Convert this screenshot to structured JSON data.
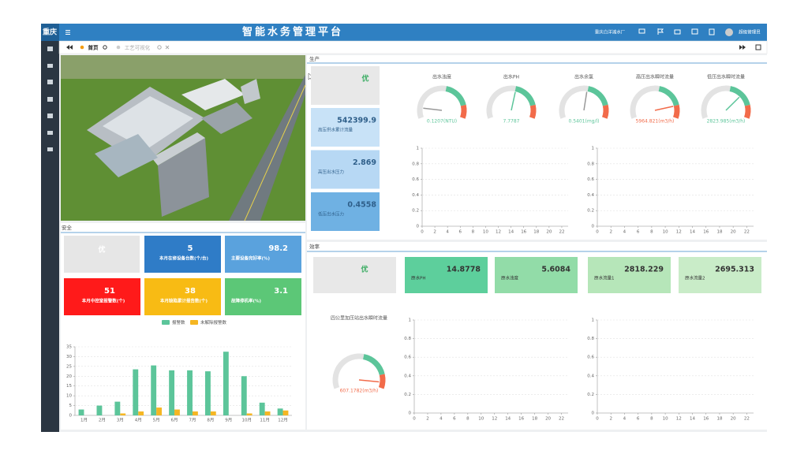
{
  "header": {
    "logo": "重庆",
    "title": "智能水务管理平台",
    "plant": "重庆白洋滩水厂",
    "user": "超级管理员"
  },
  "tabs": [
    "首页",
    "工艺可视化"
  ],
  "safety": {
    "title": "安全",
    "grade": "优",
    "cards": [
      {
        "value": 5,
        "label": "本月在修设备台数(个/台)"
      },
      {
        "value": 98.2,
        "label": "主要设备完好率(%)"
      },
      {
        "value": 51,
        "label": "本月中控室报警数(个)"
      },
      {
        "value": 38,
        "label": "本月缺陷累计报告数(个)"
      },
      {
        "value": 3.1,
        "label": "故障停机率(%)"
      }
    ]
  },
  "production": {
    "title": "生产",
    "grade": "优",
    "cards": [
      {
        "value": 542399.9,
        "label": "高压供水累计流量"
      },
      {
        "value": 2.869,
        "label": "高压出水压力"
      },
      {
        "value": 0.4558,
        "label": "低压出水压力"
      }
    ]
  },
  "efficiency": {
    "title": "效率",
    "grade": "优",
    "cards": [
      {
        "value": 14.8778,
        "label": "原水PH"
      },
      {
        "value": 5.6084,
        "label": "原水浊度"
      },
      {
        "value": 2818.229,
        "label": "原水流量1"
      },
      {
        "value": 2695.313,
        "label": "原水流量2"
      }
    ]
  },
  "chart_data": [
    {
      "type": "bar",
      "categories": [
        "1月",
        "2月",
        "3月",
        "4月",
        "5月",
        "6月",
        "7月",
        "8月",
        "9月",
        "10月",
        "11月",
        "12月"
      ],
      "series": [
        {
          "name": "报警数",
          "color": "#5cc59a",
          "values": [
            3,
            5,
            7,
            23.5,
            25.5,
            23,
            23,
            22.5,
            32.5,
            20,
            6.5,
            3.5
          ]
        },
        {
          "name": "未解除报警数",
          "color": "#f5b623",
          "values": [
            0,
            0,
            1,
            2,
            4,
            3,
            2,
            2,
            0,
            1,
            2,
            2.5
          ]
        }
      ],
      "ylim": [
        0,
        35
      ],
      "yticks": [
        0,
        5,
        10,
        15,
        20,
        25,
        30,
        35
      ],
      "grid": true
    },
    {
      "type": "gauge",
      "title": "出水浊度",
      "value": 0.1207,
      "value_label": "0.1207(NTU)",
      "range": [
        0,
        1
      ]
    },
    {
      "type": "gauge",
      "title": "出水PH",
      "value": 7.7787,
      "value_label": "7.7787",
      "range": [
        0,
        14
      ]
    },
    {
      "type": "gauge",
      "title": "出水余氯",
      "value": 0.5401,
      "value_label": "0.5401(mg/l)",
      "range": [
        0,
        1
      ]
    },
    {
      "type": "gauge",
      "title": "高压出水瞬时流量",
      "value": 5964.821,
      "value_label": "5964.821(m3/h)",
      "range": [
        0,
        7000
      ]
    },
    {
      "type": "gauge",
      "title": "低压出水瞬时流量",
      "value": 2823.985,
      "value_label": "2823.985(m3/h)",
      "range": [
        0,
        4000
      ]
    },
    {
      "type": "line",
      "xlim": [
        0,
        23
      ],
      "xticks": [
        0,
        2,
        4,
        6,
        8,
        10,
        12,
        14,
        16,
        18,
        20,
        22
      ],
      "ylim": [
        0,
        1
      ],
      "yticks": [
        0,
        0.2,
        0.4,
        0.6,
        0.8,
        1
      ],
      "grid": true,
      "series": []
    },
    {
      "type": "line",
      "xlim": [
        0,
        23
      ],
      "xticks": [
        0,
        2,
        4,
        6,
        8,
        10,
        12,
        14,
        16,
        18,
        20,
        22
      ],
      "ylim": [
        0,
        1
      ],
      "yticks": [
        0,
        0.2,
        0.4,
        0.6,
        0.8,
        1
      ],
      "grid": true,
      "series": []
    },
    {
      "type": "gauge",
      "title": "四公里加压站出水瞬时流量",
      "value": 607.1782,
      "value_label": "607.1782(m3/h)",
      "range": [
        0,
        650
      ]
    },
    {
      "type": "line",
      "xlim": [
        0,
        23
      ],
      "xticks": [
        0,
        2,
        4,
        6,
        8,
        10,
        12,
        14,
        16,
        18,
        20,
        22
      ],
      "ylim": [
        0,
        1
      ],
      "yticks": [
        0,
        0.2,
        0.4,
        0.6,
        0.8,
        1
      ],
      "grid": true,
      "series": []
    },
    {
      "type": "line",
      "xlim": [
        0,
        23
      ],
      "xticks": [
        0,
        2,
        4,
        6,
        8,
        10,
        12,
        14,
        16,
        18,
        20,
        22
      ],
      "ylim": [
        0,
        1
      ],
      "yticks": [
        0,
        0.2,
        0.4,
        0.6,
        0.8,
        1
      ],
      "grid": true,
      "series": []
    }
  ]
}
